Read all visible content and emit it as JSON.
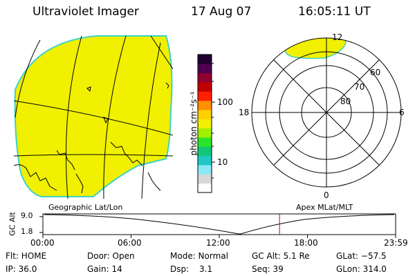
{
  "header": {
    "instrument": "Ultraviolet Imager",
    "date": "17 Aug 07",
    "time": "16:05:11 UT"
  },
  "colorbar": {
    "unit_label": "photon cm⁻²s⁻¹",
    "ticks": [
      "100",
      "10"
    ],
    "scale": "log",
    "colors": [
      "#ffffff",
      "#d8d8d8",
      "#8be9f5",
      "#22c8c8",
      "#10c878",
      "#28e628",
      "#a0f000",
      "#f0f000",
      "#ffd000",
      "#ff9000",
      "#ff2000",
      "#c00000",
      "#900030",
      "#500050",
      "#200030"
    ]
  },
  "geo_map": {
    "fill_color": "#f0f000",
    "edge_color": "#3cd2c8"
  },
  "polar_plot": {
    "mlt_labels": {
      "top": "12",
      "left": "18",
      "right": "6",
      "bottom": "0"
    },
    "lat_labels": [
      "60",
      "70",
      "80"
    ],
    "fill_color": "#f0f000"
  },
  "orbit": {
    "left_title": "Geographic Lat/Lon",
    "right_title": "Apex  MLat/MLT",
    "ylabel": "GC Alt",
    "yticks": [
      "9.0",
      "1.8"
    ],
    "xticks": [
      "00:00",
      "06:00",
      "12:00",
      "18:00",
      "23:59"
    ],
    "current_time_hours": 16.09,
    "marker_color": "#cc0000"
  },
  "footer": {
    "row1": {
      "flt": "Flt: HOME",
      "door": "Door: Open",
      "mode": "Mode: Normal",
      "gc_alt": "GC Alt: 5.1 Re",
      "glat": "GLat: −57.5"
    },
    "row2": {
      "ip": "IP: 36.0",
      "gain": "Gain: 14",
      "dsp_label": "Dsp:",
      "dsp_value": "3.1",
      "seq": "Seq: 39",
      "glon": "GLon: 314.0"
    }
  }
}
